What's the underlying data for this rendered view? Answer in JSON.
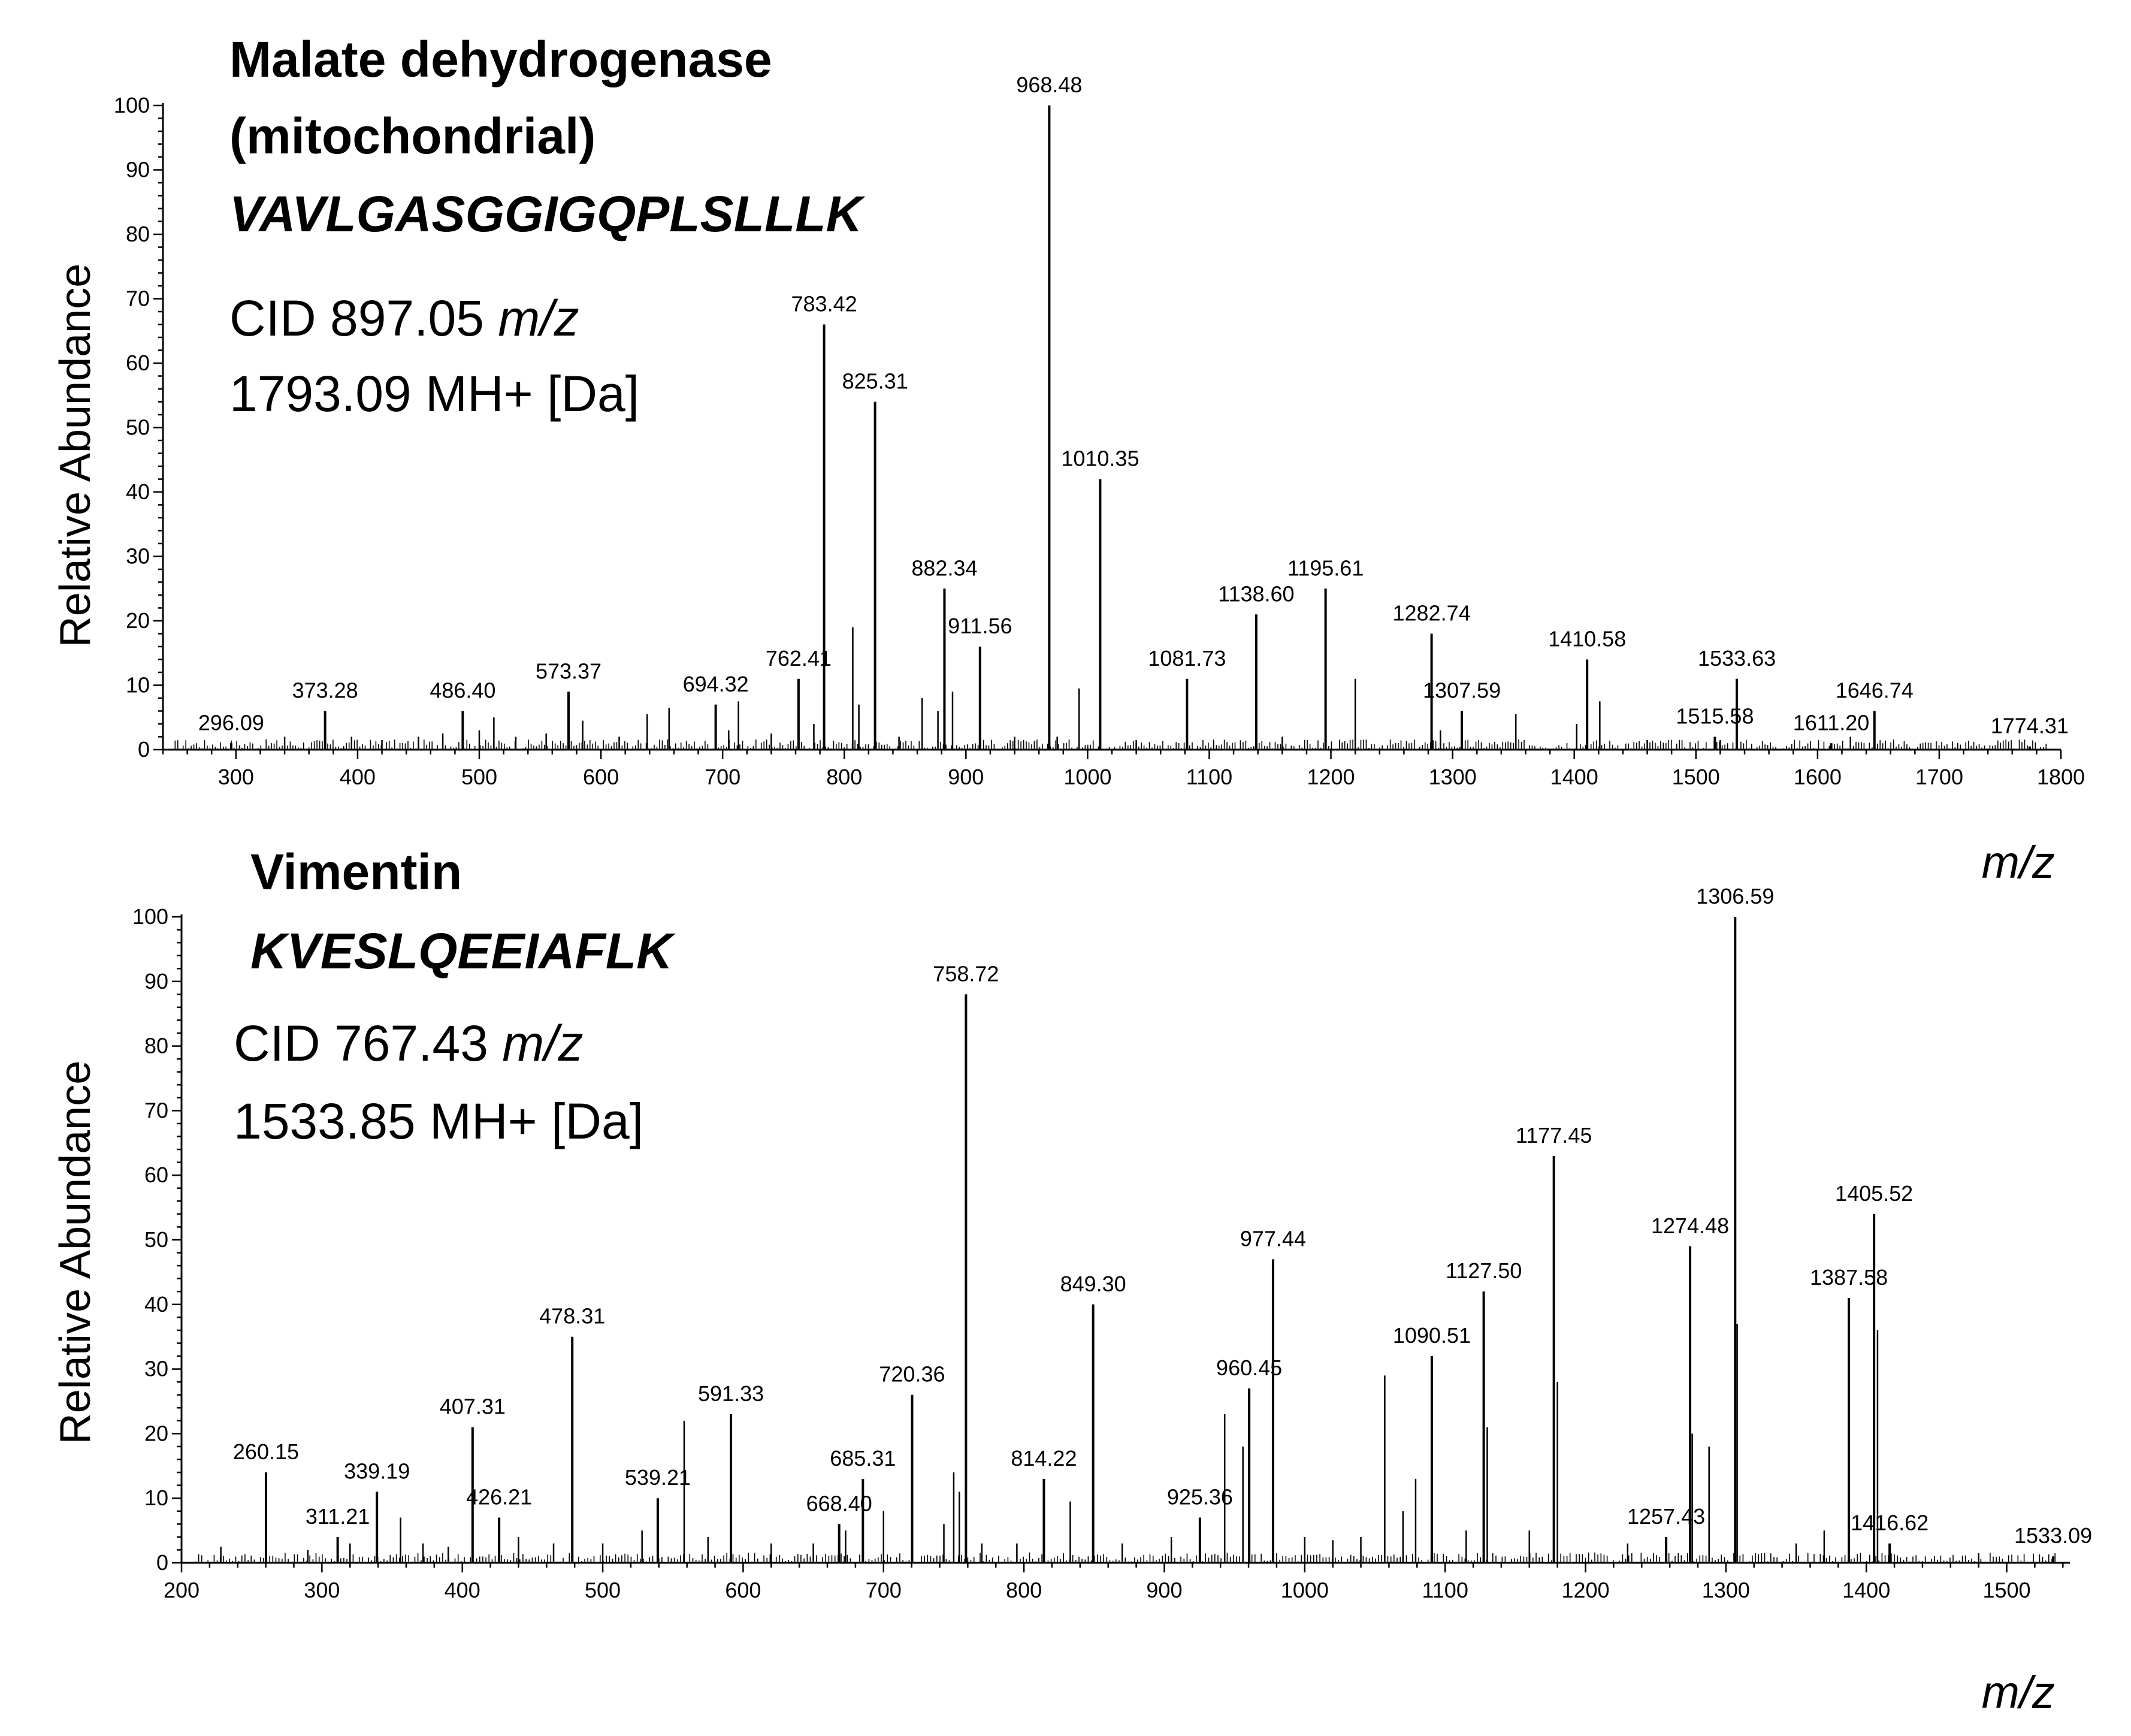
{
  "chart_data": [
    {
      "type": "mass-spectrum",
      "protein": "Malate dehydrogenase",
      "protein_sub": "(mitochondrial)",
      "sequence": "VAVLGASGGIGQPLSLLLK",
      "cid_value": "CID 897.05",
      "cid_unit": "m/z",
      "mh": "1793.09 MH+ [Da]",
      "ylabel": "Relative Abundance",
      "xlabel": "m/z",
      "xlim": [
        240,
        1800
      ],
      "ylim": [
        0,
        100
      ],
      "xticks": [
        300,
        400,
        500,
        600,
        700,
        800,
        900,
        1000,
        1100,
        1200,
        1300,
        1400,
        1500,
        1600,
        1700,
        1800
      ],
      "yticks": [
        0,
        10,
        20,
        30,
        40,
        50,
        60,
        70,
        80,
        90,
        100
      ],
      "labeled_peaks": [
        {
          "mz": 296.09,
          "intensity": 1,
          "label": "296.09"
        },
        {
          "mz": 373.28,
          "intensity": 6,
          "label": "373.28"
        },
        {
          "mz": 486.4,
          "intensity": 6,
          "label": "486.40"
        },
        {
          "mz": 573.37,
          "intensity": 9,
          "label": "573.37"
        },
        {
          "mz": 694.32,
          "intensity": 7,
          "label": "694.32"
        },
        {
          "mz": 762.41,
          "intensity": 11,
          "label": "762.41"
        },
        {
          "mz": 783.42,
          "intensity": 66,
          "label": "783.42"
        },
        {
          "mz": 825.31,
          "intensity": 54,
          "label": "825.31"
        },
        {
          "mz": 882.34,
          "intensity": 25,
          "label": "882.34"
        },
        {
          "mz": 911.56,
          "intensity": 16,
          "label": "911.56"
        },
        {
          "mz": 968.48,
          "intensity": 100,
          "label": "968.48"
        },
        {
          "mz": 1010.35,
          "intensity": 42,
          "label": "1010.35"
        },
        {
          "mz": 1081.73,
          "intensity": 11,
          "label": "1081.73"
        },
        {
          "mz": 1138.6,
          "intensity": 21,
          "label": "1138.60"
        },
        {
          "mz": 1195.61,
          "intensity": 25,
          "label": "1195.61"
        },
        {
          "mz": 1282.74,
          "intensity": 18,
          "label": "1282.74"
        },
        {
          "mz": 1307.59,
          "intensity": 6,
          "label": "1307.59"
        },
        {
          "mz": 1410.58,
          "intensity": 14,
          "label": "1410.58"
        },
        {
          "mz": 1515.58,
          "intensity": 2,
          "label": "1515.58"
        },
        {
          "mz": 1533.63,
          "intensity": 11,
          "label": "1533.63"
        },
        {
          "mz": 1611.2,
          "intensity": 1,
          "label": "1611.20"
        },
        {
          "mz": 1646.74,
          "intensity": 6,
          "label": "1646.74"
        },
        {
          "mz": 1774.31,
          "intensity": 0.5,
          "label": "1774.31"
        }
      ],
      "minor_peaks": [
        {
          "mz": 340,
          "intensity": 2
        },
        {
          "mz": 395,
          "intensity": 2
        },
        {
          "mz": 420,
          "intensity": 1.5
        },
        {
          "mz": 450,
          "intensity": 2
        },
        {
          "mz": 470,
          "intensity": 2.5
        },
        {
          "mz": 500,
          "intensity": 3
        },
        {
          "mz": 512,
          "intensity": 5
        },
        {
          "mz": 530,
          "intensity": 2
        },
        {
          "mz": 555,
          "intensity": 2.5
        },
        {
          "mz": 585,
          "intensity": 4.5
        },
        {
          "mz": 615,
          "intensity": 2
        },
        {
          "mz": 638,
          "intensity": 5.5
        },
        {
          "mz": 656,
          "intensity": 6.5
        },
        {
          "mz": 705,
          "intensity": 3
        },
        {
          "mz": 713,
          "intensity": 7.5
        },
        {
          "mz": 740,
          "intensity": 2.5
        },
        {
          "mz": 775,
          "intensity": 4
        },
        {
          "mz": 807,
          "intensity": 19
        },
        {
          "mz": 812,
          "intensity": 7
        },
        {
          "mz": 845,
          "intensity": 2
        },
        {
          "mz": 864,
          "intensity": 8
        },
        {
          "mz": 877,
          "intensity": 6
        },
        {
          "mz": 889,
          "intensity": 9
        },
        {
          "mz": 940,
          "intensity": 2
        },
        {
          "mz": 975,
          "intensity": 2
        },
        {
          "mz": 993,
          "intensity": 9.5
        },
        {
          "mz": 1040,
          "intensity": 1.5
        },
        {
          "mz": 1160,
          "intensity": 2
        },
        {
          "mz": 1220,
          "intensity": 11
        },
        {
          "mz": 1290,
          "intensity": 3
        },
        {
          "mz": 1352,
          "intensity": 5.5
        },
        {
          "mz": 1402,
          "intensity": 4
        },
        {
          "mz": 1421,
          "intensity": 7.5
        },
        {
          "mz": 1460,
          "intensity": 1.5
        },
        {
          "mz": 1520,
          "intensity": 1.5
        },
        {
          "mz": 1627,
          "intensity": 2
        }
      ]
    },
    {
      "type": "mass-spectrum",
      "protein": "Vimentin",
      "protein_sub": "",
      "sequence": "KVESLQEEIAFLK",
      "cid_value": "CID 767.43",
      "cid_unit": "m/z",
      "mh": "1533.85 MH+ [Da]",
      "ylabel": "Relative Abundance",
      "xlabel": "m/z",
      "xlim": [
        200,
        1545
      ],
      "ylim": [
        0,
        100
      ],
      "xticks": [
        200,
        300,
        400,
        500,
        600,
        700,
        800,
        900,
        1000,
        1100,
        1200,
        1300,
        1400,
        1500
      ],
      "yticks": [
        0,
        10,
        20,
        30,
        40,
        50,
        60,
        70,
        80,
        90,
        100
      ],
      "labeled_peaks": [
        {
          "mz": 260.15,
          "intensity": 14,
          "label": "260.15"
        },
        {
          "mz": 311.21,
          "intensity": 4,
          "label": "311.21"
        },
        {
          "mz": 339.19,
          "intensity": 11,
          "label": "339.19"
        },
        {
          "mz": 407.31,
          "intensity": 21,
          "label": "407.31"
        },
        {
          "mz": 426.21,
          "intensity": 7,
          "label": "426.21"
        },
        {
          "mz": 478.31,
          "intensity": 35,
          "label": "478.31"
        },
        {
          "mz": 539.21,
          "intensity": 10,
          "label": "539.21"
        },
        {
          "mz": 591.33,
          "intensity": 23,
          "label": "591.33"
        },
        {
          "mz": 668.4,
          "intensity": 6,
          "label": "668.40"
        },
        {
          "mz": 685.31,
          "intensity": 13,
          "label": "685.31"
        },
        {
          "mz": 720.36,
          "intensity": 26,
          "label": "720.36"
        },
        {
          "mz": 758.72,
          "intensity": 88,
          "label": "758.72"
        },
        {
          "mz": 814.22,
          "intensity": 13,
          "label": "814.22"
        },
        {
          "mz": 849.3,
          "intensity": 40,
          "label": "849.30"
        },
        {
          "mz": 925.36,
          "intensity": 7,
          "label": "925.36"
        },
        {
          "mz": 960.45,
          "intensity": 27,
          "label": "960.45"
        },
        {
          "mz": 977.44,
          "intensity": 47,
          "label": "977.44"
        },
        {
          "mz": 1090.51,
          "intensity": 32,
          "label": "1090.51"
        },
        {
          "mz": 1127.5,
          "intensity": 42,
          "label": "1127.50"
        },
        {
          "mz": 1177.45,
          "intensity": 63,
          "label": "1177.45"
        },
        {
          "mz": 1257.43,
          "intensity": 4,
          "label": "1257.43"
        },
        {
          "mz": 1274.48,
          "intensity": 49,
          "label": "1274.48"
        },
        {
          "mz": 1306.59,
          "intensity": 100,
          "label": "1306.59"
        },
        {
          "mz": 1387.58,
          "intensity": 41,
          "label": "1387.58"
        },
        {
          "mz": 1405.52,
          "intensity": 54,
          "label": "1405.52"
        },
        {
          "mz": 1416.62,
          "intensity": 3,
          "label": "1416.62"
        },
        {
          "mz": 1533.09,
          "intensity": 1,
          "label": "1533.09"
        }
      ],
      "minor_peaks": [
        {
          "mz": 228,
          "intensity": 2.5
        },
        {
          "mz": 290,
          "intensity": 2
        },
        {
          "mz": 320,
          "intensity": 3
        },
        {
          "mz": 356,
          "intensity": 7
        },
        {
          "mz": 372,
          "intensity": 3
        },
        {
          "mz": 390,
          "intensity": 2.5
        },
        {
          "mz": 440,
          "intensity": 4
        },
        {
          "mz": 465,
          "intensity": 3
        },
        {
          "mz": 500,
          "intensity": 3
        },
        {
          "mz": 528,
          "intensity": 5
        },
        {
          "mz": 558,
          "intensity": 22
        },
        {
          "mz": 575,
          "intensity": 4
        },
        {
          "mz": 620,
          "intensity": 3
        },
        {
          "mz": 650,
          "intensity": 3
        },
        {
          "mz": 673,
          "intensity": 5
        },
        {
          "mz": 700,
          "intensity": 8
        },
        {
          "mz": 743,
          "intensity": 6
        },
        {
          "mz": 750,
          "intensity": 14
        },
        {
          "mz": 754,
          "intensity": 11
        },
        {
          "mz": 770,
          "intensity": 3
        },
        {
          "mz": 795,
          "intensity": 3
        },
        {
          "mz": 833,
          "intensity": 9.5
        },
        {
          "mz": 870,
          "intensity": 3
        },
        {
          "mz": 905,
          "intensity": 4
        },
        {
          "mz": 943,
          "intensity": 23
        },
        {
          "mz": 956,
          "intensity": 18
        },
        {
          "mz": 1000,
          "intensity": 4
        },
        {
          "mz": 1020,
          "intensity": 3.5
        },
        {
          "mz": 1040,
          "intensity": 4
        },
        {
          "mz": 1057,
          "intensity": 29
        },
        {
          "mz": 1070,
          "intensity": 8
        },
        {
          "mz": 1079,
          "intensity": 13
        },
        {
          "mz": 1115,
          "intensity": 5
        },
        {
          "mz": 1130,
          "intensity": 21
        },
        {
          "mz": 1160,
          "intensity": 5
        },
        {
          "mz": 1180,
          "intensity": 28
        },
        {
          "mz": 1230,
          "intensity": 3
        },
        {
          "mz": 1276,
          "intensity": 20
        },
        {
          "mz": 1288,
          "intensity": 18
        },
        {
          "mz": 1308,
          "intensity": 37
        },
        {
          "mz": 1350,
          "intensity": 3
        },
        {
          "mz": 1370,
          "intensity": 5
        },
        {
          "mz": 1408,
          "intensity": 36
        },
        {
          "mz": 1480,
          "intensity": 1.5
        }
      ]
    }
  ]
}
